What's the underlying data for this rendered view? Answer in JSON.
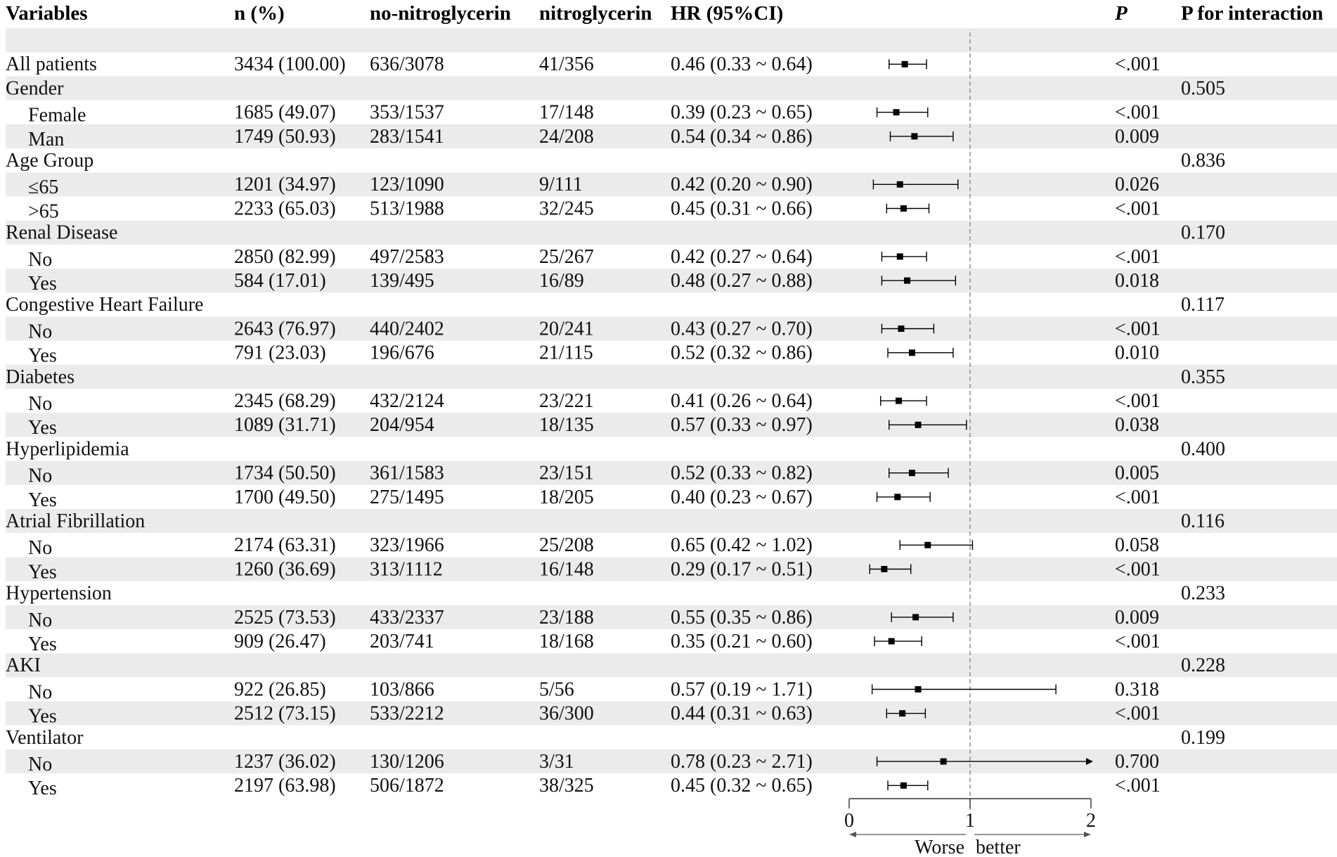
{
  "chart_data": {
    "type": "forest",
    "columns": {
      "variables": "Variables",
      "n_pct": "n (%)",
      "no_ntg": "no-nitroglycerin",
      "ntg": "nitroglycerin",
      "hr": "HR (95%CI)",
      "p": "P",
      "p_int": "P for interaction"
    },
    "xaxis": {
      "min": 0,
      "max": 2,
      "ticks": [
        "0",
        "1",
        "2"
      ],
      "tick_values": [
        0,
        1,
        2
      ],
      "reference": 1,
      "left_label": "Worse",
      "right_label": "better"
    },
    "rows": [
      {
        "label": "",
        "n": "",
        "no": "",
        "yes": "",
        "hr_text": "",
        "p": "",
        "p_int": "",
        "indent": false
      },
      {
        "label": "All patients",
        "n": "3434 (100.00)",
        "no": "636/3078",
        "yes": "41/356",
        "hr_text": "0.46 (0.33 ~ 0.64)",
        "hr": 0.46,
        "lo": 0.33,
        "hi": 0.64,
        "p": "<.001",
        "p_int": "",
        "indent": false
      },
      {
        "label": "Gender",
        "n": "",
        "no": "",
        "yes": "",
        "hr_text": "",
        "p": "",
        "p_int": "0.505",
        "indent": false
      },
      {
        "label": "Female",
        "n": "1685 (49.07)",
        "no": "353/1537",
        "yes": "17/148",
        "hr_text": "0.39 (0.23 ~ 0.65)",
        "hr": 0.39,
        "lo": 0.23,
        "hi": 0.65,
        "p": "<.001",
        "p_int": "",
        "indent": true
      },
      {
        "label": "Man",
        "n": "1749 (50.93)",
        "no": "283/1541",
        "yes": "24/208",
        "hr_text": "0.54 (0.34 ~ 0.86)",
        "hr": 0.54,
        "lo": 0.34,
        "hi": 0.86,
        "p": "0.009",
        "p_int": "",
        "indent": true
      },
      {
        "label": "Age Group",
        "n": "",
        "no": "",
        "yes": "",
        "hr_text": "",
        "p": "",
        "p_int": "0.836",
        "indent": false
      },
      {
        "label": "≤65",
        "n": "1201 (34.97)",
        "no": "123/1090",
        "yes": "9/111",
        "hr_text": "0.42 (0.20 ~ 0.90)",
        "hr": 0.42,
        "lo": 0.2,
        "hi": 0.9,
        "p": "0.026",
        "p_int": "",
        "indent": true
      },
      {
        "label": ">65",
        "n": "2233 (65.03)",
        "no": "513/1988",
        "yes": "32/245",
        "hr_text": "0.45 (0.31 ~ 0.66)",
        "hr": 0.45,
        "lo": 0.31,
        "hi": 0.66,
        "p": "<.001",
        "p_int": "",
        "indent": true
      },
      {
        "label": "Renal Disease",
        "n": "",
        "no": "",
        "yes": "",
        "hr_text": "",
        "p": "",
        "p_int": "0.170",
        "indent": false
      },
      {
        "label": "No",
        "n": "2850 (82.99)",
        "no": "497/2583",
        "yes": "25/267",
        "hr_text": "0.42 (0.27 ~ 0.64)",
        "hr": 0.42,
        "lo": 0.27,
        "hi": 0.64,
        "p": "<.001",
        "p_int": "",
        "indent": true
      },
      {
        "label": "Yes",
        "n": "584 (17.01)",
        "no": "139/495",
        "yes": "16/89",
        "hr_text": "0.48 (0.27 ~ 0.88)",
        "hr": 0.48,
        "lo": 0.27,
        "hi": 0.88,
        "p": "0.018",
        "p_int": "",
        "indent": true
      },
      {
        "label": "Congestive Heart Failure",
        "n": "",
        "no": "",
        "yes": "",
        "hr_text": "",
        "p": "",
        "p_int": "0.117",
        "indent": false
      },
      {
        "label": "No",
        "n": "2643 (76.97)",
        "no": "440/2402",
        "yes": "20/241",
        "hr_text": "0.43 (0.27 ~ 0.70)",
        "hr": 0.43,
        "lo": 0.27,
        "hi": 0.7,
        "p": "<.001",
        "p_int": "",
        "indent": true
      },
      {
        "label": "Yes",
        "n": "791 (23.03)",
        "no": "196/676",
        "yes": "21/115",
        "hr_text": "0.52 (0.32 ~ 0.86)",
        "hr": 0.52,
        "lo": 0.32,
        "hi": 0.86,
        "p": "0.010",
        "p_int": "",
        "indent": true
      },
      {
        "label": "Diabetes",
        "n": "",
        "no": "",
        "yes": "",
        "hr_text": "",
        "p": "",
        "p_int": "0.355",
        "indent": false
      },
      {
        "label": "No",
        "n": "2345 (68.29)",
        "no": "432/2124",
        "yes": "23/221",
        "hr_text": "0.41 (0.26 ~ 0.64)",
        "hr": 0.41,
        "lo": 0.26,
        "hi": 0.64,
        "p": "<.001",
        "p_int": "",
        "indent": true
      },
      {
        "label": "Yes",
        "n": "1089 (31.71)",
        "no": "204/954",
        "yes": "18/135",
        "hr_text": "0.57 (0.33 ~ 0.97)",
        "hr": 0.57,
        "lo": 0.33,
        "hi": 0.97,
        "p": "0.038",
        "p_int": "",
        "indent": true
      },
      {
        "label": "Hyperlipidemia",
        "n": "",
        "no": "",
        "yes": "",
        "hr_text": "",
        "p": "",
        "p_int": "0.400",
        "indent": false
      },
      {
        "label": "No",
        "n": "1734 (50.50)",
        "no": "361/1583",
        "yes": "23/151",
        "hr_text": "0.52 (0.33 ~ 0.82)",
        "hr": 0.52,
        "lo": 0.33,
        "hi": 0.82,
        "p": "0.005",
        "p_int": "",
        "indent": true
      },
      {
        "label": "Yes",
        "n": "1700 (49.50)",
        "no": "275/1495",
        "yes": "18/205",
        "hr_text": "0.40 (0.23 ~ 0.67)",
        "hr": 0.4,
        "lo": 0.23,
        "hi": 0.67,
        "p": "<.001",
        "p_int": "",
        "indent": true
      },
      {
        "label": "Atrial Fibrillation",
        "n": "",
        "no": "",
        "yes": "",
        "hr_text": "",
        "p": "",
        "p_int": "0.116",
        "indent": false
      },
      {
        "label": "No",
        "n": "2174 (63.31)",
        "no": "323/1966",
        "yes": "25/208",
        "hr_text": "0.65 (0.42 ~ 1.02)",
        "hr": 0.65,
        "lo": 0.42,
        "hi": 1.02,
        "p": "0.058",
        "p_int": "",
        "indent": true
      },
      {
        "label": "Yes",
        "n": "1260 (36.69)",
        "no": "313/1112",
        "yes": "16/148",
        "hr_text": "0.29 (0.17 ~ 0.51)",
        "hr": 0.29,
        "lo": 0.17,
        "hi": 0.51,
        "p": "<.001",
        "p_int": "",
        "indent": true
      },
      {
        "label": "Hypertension",
        "n": "",
        "no": "",
        "yes": "",
        "hr_text": "",
        "p": "",
        "p_int": "0.233",
        "indent": false
      },
      {
        "label": "No",
        "n": "2525 (73.53)",
        "no": "433/2337",
        "yes": "23/188",
        "hr_text": "0.55 (0.35 ~ 0.86)",
        "hr": 0.55,
        "lo": 0.35,
        "hi": 0.86,
        "p": "0.009",
        "p_int": "",
        "indent": true
      },
      {
        "label": "Yes",
        "n": "909 (26.47)",
        "no": "203/741",
        "yes": "18/168",
        "hr_text": "0.35 (0.21 ~ 0.60)",
        "hr": 0.35,
        "lo": 0.21,
        "hi": 0.6,
        "p": "<.001",
        "p_int": "",
        "indent": true
      },
      {
        "label": "AKI",
        "n": "",
        "no": "",
        "yes": "",
        "hr_text": "",
        "p": "",
        "p_int": "0.228",
        "indent": false
      },
      {
        "label": "No",
        "n": "922 (26.85)",
        "no": "103/866",
        "yes": "5/56",
        "hr_text": "0.57 (0.19 ~ 1.71)",
        "hr": 0.57,
        "lo": 0.19,
        "hi": 1.71,
        "p": "0.318",
        "p_int": "",
        "indent": true
      },
      {
        "label": "Yes",
        "n": "2512 (73.15)",
        "no": "533/2212",
        "yes": "36/300",
        "hr_text": "0.44 (0.31 ~ 0.63)",
        "hr": 0.44,
        "lo": 0.31,
        "hi": 0.63,
        "p": "<.001",
        "p_int": "",
        "indent": true
      },
      {
        "label": "Ventilator",
        "n": "",
        "no": "",
        "yes": "",
        "hr_text": "",
        "p": "",
        "p_int": "0.199",
        "indent": false
      },
      {
        "label": "No",
        "n": "1237 (36.02)",
        "no": "130/1206",
        "yes": "3/31",
        "hr_text": "0.78 (0.23 ~ 2.71)",
        "hr": 0.78,
        "lo": 0.23,
        "hi": 2.71,
        "p": "0.700",
        "p_int": "",
        "indent": true
      },
      {
        "label": "Yes",
        "n": "2197 (63.98)",
        "no": "506/1872",
        "yes": "38/325",
        "hr_text": "0.45 (0.32 ~ 0.65)",
        "hr": 0.45,
        "lo": 0.32,
        "hi": 0.65,
        "p": "<.001",
        "p_int": "",
        "indent": true
      }
    ],
    "colors": {
      "stripe": "#ebebeb",
      "text": "#111111",
      "mark": "#000000",
      "reference_line": "#888888"
    }
  }
}
